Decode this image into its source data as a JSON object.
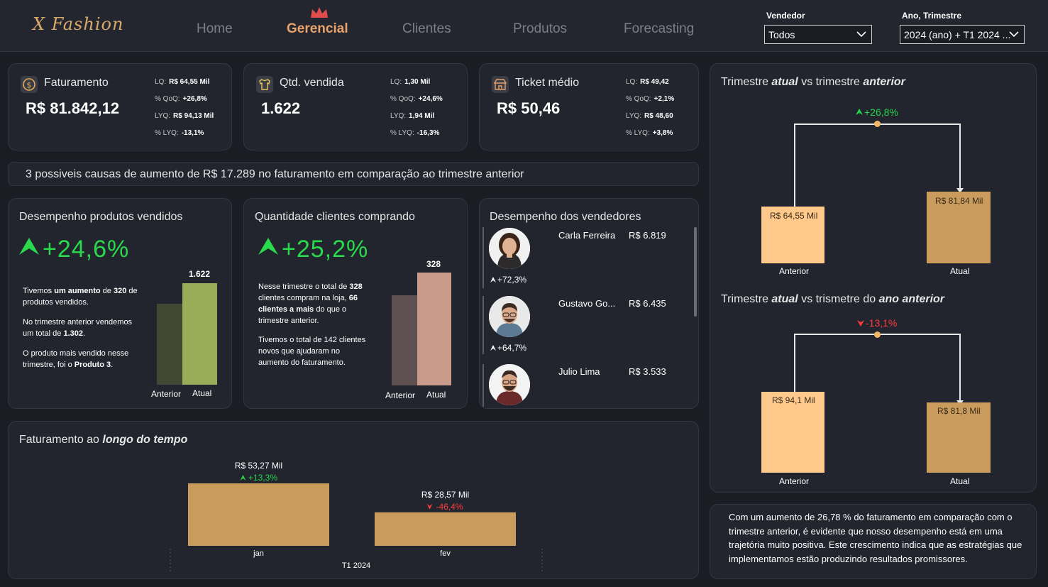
{
  "header": {
    "logo": "X Fashion",
    "nav": [
      "Home",
      "Gerencial",
      "Clientes",
      "Produtos",
      "Forecasting"
    ],
    "filters": {
      "vendedor_label": "Vendedor",
      "vendedor_value": "Todos",
      "periodo_label": "Ano, Trimestre",
      "periodo_value": "2024 (ano) + T1 2024 ..."
    }
  },
  "kpis": [
    {
      "title": "Faturamento",
      "value": "R$ 81.842,12",
      "stats": [
        [
          "LQ:",
          "R$ 64,55 Mil"
        ],
        [
          "% QoQ:",
          "+26,8%"
        ],
        [
          "LYQ:",
          "R$ 94,13 Mil"
        ],
        [
          "% LYQ:",
          "-13,1%"
        ]
      ]
    },
    {
      "title": "Qtd. vendida",
      "value": "1.622",
      "stats": [
        [
          "LQ:",
          "1,30 Mil"
        ],
        [
          "% QoQ:",
          "+24,6%"
        ],
        [
          "LYQ:",
          "1,94 Mil"
        ],
        [
          "% LYQ:",
          "-16,3%"
        ]
      ]
    },
    {
      "title": "Ticket médio",
      "value": "R$ 50,46",
      "stats": [
        [
          "LQ:",
          "R$ 49,42"
        ],
        [
          "% QoQ:",
          "+2,1%"
        ],
        [
          "LYQ:",
          "R$ 48,60"
        ],
        [
          "% LYQ:",
          "+3,8%"
        ]
      ]
    }
  ],
  "banner": "3 possiveis causas de aumento de R$ 17.289 no faturamento em comparação ao trimestre anterior",
  "produtos": {
    "title": "Desempenho produtos vendidos",
    "pct": "+24,6%",
    "text1a": "Tivemos ",
    "text1b": "um aumento",
    "text1c": " de ",
    "text1d": "320",
    "text1e": " de produtos vendidos.",
    "text2a": "No trimestre anterior vendemos um total de ",
    "text2b": "1.302",
    ".": ".",
    "text3a": "O produto mais vendido nesse trimestre, foi o ",
    "text3b": "Produto 3",
    "bar_label": "1.622",
    "x_anterior": "Anterior",
    "x_atual": "Atual"
  },
  "clientes": {
    "title": "Quantidade clientes comprando",
    "pct": "+25,2%",
    "t1": "Nesse trimestre o total de ",
    "t2": "328",
    "t3": " clientes compram na loja, ",
    "t4": "66 clientes a mais",
    "t5": " do que o trimestre anterior.",
    "p2": "Tivemos o total de 142 clientes novos que ajudaram no aumento do faturamento.",
    "bar_label": "328",
    "x_anterior": "Anterior",
    "x_atual": "Atual"
  },
  "vendedores": {
    "title": "Desempenho dos vendedores",
    "items": [
      {
        "name": "Carla Ferreira",
        "value": "R$ 6.819",
        "pct": "+72,3%"
      },
      {
        "name": "Gustavo Go...",
        "value": "R$ 6.435",
        "pct": "+64,7%"
      },
      {
        "name": "Julio Lima",
        "value": "R$ 3.533",
        "pct": ""
      }
    ]
  },
  "tempo": {
    "title_a": "Faturamento ao ",
    "title_b": "longo do tempo",
    "bars": [
      {
        "label": "jan",
        "value": "R$ 53,27 Mil",
        "pct": "+13,3%",
        "dir": "up",
        "v": 53.27
      },
      {
        "label": "fev",
        "value": "R$ 28,57 Mil",
        "pct": "-46,4%",
        "dir": "down",
        "v": 28.57
      }
    ],
    "group": "T1 2024"
  },
  "trimestre": {
    "t1": [
      "Trimestre ",
      "atual",
      " vs trimestre ",
      "anterior"
    ],
    "pct1": "+26,8%",
    "a1": "R$ 64,55 Mil",
    "b1": "R$ 81,84 Mil",
    "t2": [
      "Trimestre ",
      "atual",
      " vs trismetre do ",
      "ano anterior"
    ],
    "pct2": "-13,1%",
    "a2": "R$ 94,1 Mil",
    "b2": "R$ 81,8 Mil",
    "x_anterior": "Anterior",
    "x_atual": "Atual"
  },
  "summary": "Com um aumento de 26,78 % do faturamento em comparação com o trimestre anterior, é evidente que nosso desempenho está em uma trajetória muito positiva. Este crescimento indica que as estratégias que implementamos estão produzindo resultados promissores.",
  "colors": {
    "bg": "#1b1d24",
    "card": "#22252e",
    "accent": "#e7a36b",
    "gold": "#c99c5e",
    "up": "#25d64b",
    "down": "#ff3b3b"
  }
}
